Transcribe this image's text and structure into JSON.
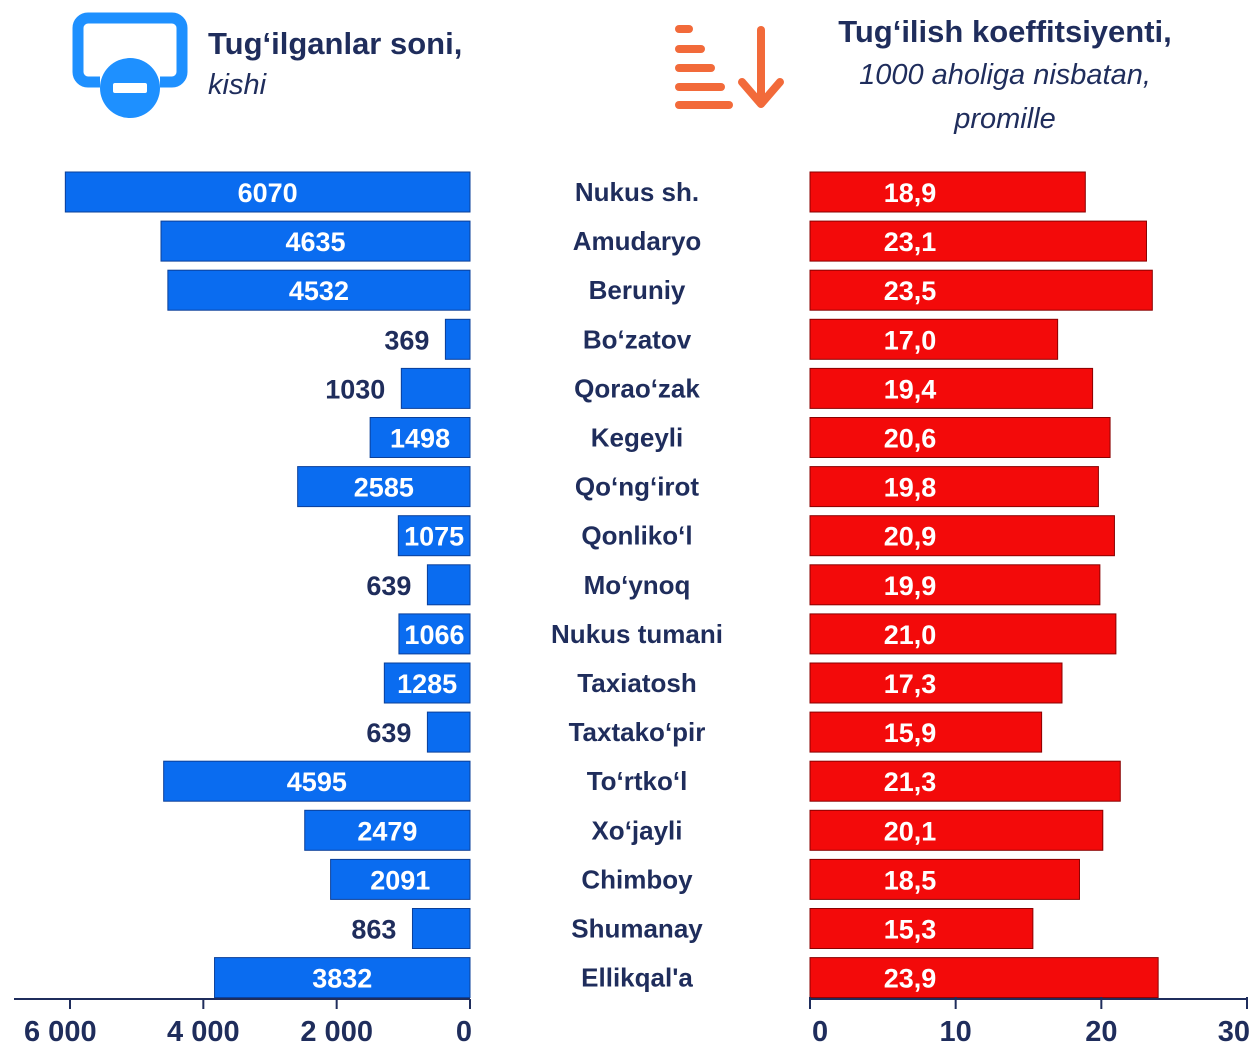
{
  "headers": {
    "left": {
      "title": "Tug‘ilganlar soni,",
      "subtitle": "kishi"
    },
    "right": {
      "title": "Tug‘ilish koeffitsiyenti,",
      "subtitle_line1": "1000 aholiga nisbatan,",
      "subtitle_line2": "promille"
    }
  },
  "icons": {
    "left": "monitor-minus-icon",
    "right": "sort-descending-icon"
  },
  "colors": {
    "left_bar": "#0a6cf0",
    "right_bar": "#f30a0a",
    "text": "#1f2d5c",
    "left_icon": "#1e90ff",
    "right_icon": "#f26a3a"
  },
  "chart_data": [
    {
      "type": "bar",
      "orientation": "horizontal",
      "direction": "right-to-left",
      "categories": [
        "Nukus sh.",
        "Amudaryo",
        "Beruniy",
        "Bo‘zatov",
        "Qorao‘zak",
        "Kegeyli",
        "Qo‘ng‘irot",
        "Qonliko‘l",
        "Mo‘ynoq",
        "Nukus tumani",
        "Taxiatosh",
        "Taxtako‘pir",
        "To‘rtko‘l",
        "Xo‘jayli",
        "Chimboy",
        "Shumanay",
        "Ellikqal'a"
      ],
      "values": [
        6070,
        4635,
        4532,
        369,
        1030,
        1498,
        2585,
        1075,
        639,
        1066,
        1285,
        639,
        4595,
        2479,
        2091,
        863,
        3832
      ],
      "labels": [
        "6070",
        "4635",
        "4532",
        "369",
        "1030",
        "1498",
        "2585",
        "1075",
        "639",
        "1066",
        "1285",
        "639",
        "4595",
        "2479",
        "2091",
        "863",
        "3832"
      ],
      "xlim": [
        0,
        6000
      ],
      "ticks": [
        0,
        2000,
        4000,
        6000
      ],
      "tick_labels": [
        "0",
        "2 000",
        "4 000",
        "6 000"
      ]
    },
    {
      "type": "bar",
      "orientation": "horizontal",
      "categories": [
        "Nukus sh.",
        "Amudaryo",
        "Beruniy",
        "Bo‘zatov",
        "Qorao‘zak",
        "Kegeyli",
        "Qo‘ng‘irot",
        "Qonliko‘l",
        "Mo‘ynoq",
        "Nukus tumani",
        "Taxiatosh",
        "Taxtako‘pir",
        "To‘rtko‘l",
        "Xo‘jayli",
        "Chimboy",
        "Shumanay",
        "Ellikqal'a"
      ],
      "values": [
        18.9,
        23.1,
        23.5,
        17.0,
        19.4,
        20.6,
        19.8,
        20.9,
        19.9,
        21.0,
        17.3,
        15.9,
        21.3,
        20.1,
        18.5,
        15.3,
        23.9
      ],
      "labels": [
        "18,9",
        "23,1",
        "23,5",
        "17,0",
        "19,4",
        "20,6",
        "19,8",
        "20,9",
        "19,9",
        "21,0",
        "17,3",
        "15,9",
        "21,3",
        "20,1",
        "18,5",
        "15,3",
        "23,9"
      ],
      "xlim": [
        0,
        30
      ],
      "ticks": [
        0,
        10,
        20,
        30
      ],
      "tick_labels": [
        "0",
        "10",
        "20",
        "30"
      ]
    }
  ]
}
